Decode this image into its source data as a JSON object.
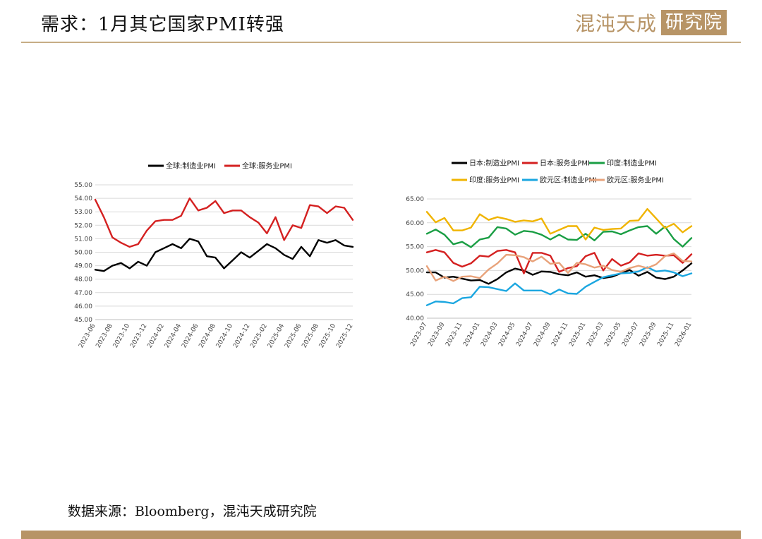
{
  "header": {
    "title": "需求：1月其它国家PMI转强",
    "logo_text": "混沌天成",
    "logo_box": "研究院"
  },
  "footer": {
    "source": "数据来源：Bloomberg，混沌天成研究院"
  },
  "chart_data": [
    {
      "type": "line",
      "title": "",
      "xlabel": "",
      "ylabel": "",
      "ylim": [
        45,
        55
      ],
      "yticks": [
        "55.00",
        "54.00",
        "53.00",
        "52.00",
        "51.00",
        "50.00",
        "49.00",
        "48.00",
        "47.00",
        "46.00",
        "45.00"
      ],
      "x": [
        "2023-06",
        "2023-07",
        "2023-08",
        "2023-09",
        "2023-10",
        "2023-11",
        "2023-12",
        "2024-01",
        "2024-02",
        "2024-03",
        "2024-04",
        "2024-05",
        "2024-06",
        "2024-07",
        "2024-08",
        "2024-09",
        "2024-10",
        "2024-11",
        "2024-12",
        "2025-01",
        "2025-02",
        "2025-03",
        "2025-04",
        "2025-05",
        "2025-06",
        "2025-07",
        "2025-08",
        "2025-09",
        "2025-10",
        "2025-11",
        "2025-12"
      ],
      "xtick_labels": [
        "2023-06",
        "2023-08",
        "2023-10",
        "2023-12",
        "2024-02",
        "2024-04",
        "2024-06",
        "2024-08",
        "2024-10",
        "2024-12",
        "2025-02",
        "2025-04",
        "2025-06",
        "2025-08",
        "2025-10",
        "2025-12"
      ],
      "legend_position": "top",
      "series": [
        {
          "name": "全球:制造业PMI",
          "color": "#000000",
          "values": [
            48.7,
            48.6,
            49.0,
            49.2,
            48.8,
            49.3,
            49.0,
            50.0,
            50.3,
            50.6,
            50.3,
            51.0,
            50.8,
            49.7,
            49.6,
            48.8,
            49.4,
            50.0,
            49.6,
            50.1,
            50.6,
            50.3,
            49.8,
            49.5,
            50.4,
            49.7,
            50.9,
            50.7,
            50.9,
            50.5,
            50.4
          ]
        },
        {
          "name": "全球:服务业PMI",
          "color": "#d42020",
          "values": [
            53.9,
            52.6,
            51.1,
            50.7,
            50.4,
            50.6,
            51.6,
            52.3,
            52.4,
            52.4,
            52.7,
            54.0,
            53.1,
            53.3,
            53.8,
            52.9,
            53.1,
            53.1,
            52.6,
            52.2,
            51.4,
            52.6,
            50.9,
            52.0,
            51.8,
            53.5,
            53.4,
            52.9,
            53.4,
            53.3,
            52.4
          ]
        }
      ]
    },
    {
      "type": "line",
      "title": "",
      "xlabel": "",
      "ylabel": "",
      "ylim": [
        40,
        65
      ],
      "yticks": [
        "65.00",
        "60.00",
        "55.00",
        "50.00",
        "45.00",
        "40.00"
      ],
      "x": [
        "2023-07",
        "2023-08",
        "2023-09",
        "2023-10",
        "2023-11",
        "2023-12",
        "2024-01",
        "2024-02",
        "2024-03",
        "2024-04",
        "2024-05",
        "2024-06",
        "2024-07",
        "2024-08",
        "2024-09",
        "2024-10",
        "2024-11",
        "2024-12",
        "2025-01",
        "2025-02",
        "2025-03",
        "2025-04",
        "2025-05",
        "2025-06",
        "2025-07",
        "2025-08",
        "2025-09",
        "2025-10",
        "2025-11",
        "2025-12",
        "2026-01"
      ],
      "xtick_labels": [
        "2023-07",
        "2023-09",
        "2023-11",
        "2024-01",
        "2024-03",
        "2024-05",
        "2024-07",
        "2024-09",
        "2024-11",
        "2025-01",
        "2025-03",
        "2025-05",
        "2025-07",
        "2025-09",
        "2025-11",
        "2026-01"
      ],
      "legend_position": "top",
      "series": [
        {
          "name": "日本:制造业PMI",
          "color": "#000000",
          "values": [
            49.6,
            49.6,
            48.5,
            48.7,
            48.3,
            47.9,
            48.0,
            47.2,
            48.2,
            49.6,
            50.4,
            50.0,
            49.1,
            49.8,
            49.7,
            49.2,
            49.0,
            49.6,
            48.7,
            49.0,
            48.4,
            48.7,
            49.4,
            50.1,
            48.9,
            49.7,
            48.5,
            48.2,
            48.7,
            50.0,
            51.5
          ]
        },
        {
          "name": "日本:服务业PMI",
          "color": "#d42020",
          "values": [
            53.8,
            54.3,
            53.8,
            51.6,
            50.8,
            51.5,
            53.1,
            52.9,
            54.1,
            54.3,
            53.8,
            49.4,
            53.7,
            53.7,
            53.1,
            49.7,
            50.5,
            50.9,
            53.0,
            53.7,
            50.0,
            52.4,
            51.0,
            51.7,
            53.6,
            53.1,
            53.3,
            53.1,
            53.2,
            51.6,
            53.4
          ]
        },
        {
          "name": "印度:制造业PMI",
          "color": "#1a9e44",
          "values": [
            57.7,
            58.6,
            57.5,
            55.5,
            56.0,
            54.9,
            56.5,
            56.9,
            59.1,
            58.8,
            57.5,
            58.3,
            58.1,
            57.5,
            56.5,
            57.5,
            56.5,
            56.4,
            57.7,
            56.3,
            58.1,
            58.2,
            57.6,
            58.4,
            59.1,
            59.3,
            57.7,
            59.2,
            56.6,
            55.0,
            56.8
          ]
        },
        {
          "name": "印度:服务业PMI",
          "color": "#f0b400",
          "values": [
            62.3,
            60.1,
            61.0,
            58.4,
            58.4,
            59.0,
            61.8,
            60.6,
            61.2,
            60.8,
            60.2,
            60.5,
            60.3,
            60.9,
            57.7,
            58.5,
            59.3,
            59.3,
            56.5,
            59.0,
            58.5,
            58.7,
            58.8,
            60.4,
            60.5,
            62.9,
            60.9,
            58.9,
            59.8,
            58.0,
            59.3
          ]
        },
        {
          "name": "欧元区:制造业PMI",
          "color": "#1aa6e0",
          "values": [
            42.7,
            43.5,
            43.4,
            43.1,
            44.2,
            44.4,
            46.6,
            46.5,
            46.1,
            45.7,
            47.3,
            45.8,
            45.8,
            45.8,
            45.0,
            46.0,
            45.2,
            45.1,
            46.6,
            47.6,
            48.6,
            49.0,
            49.4,
            49.5,
            49.8,
            50.7,
            49.8,
            50.0,
            49.6,
            48.8,
            49.4
          ]
        },
        {
          "name": "欧元区:服务业PMI",
          "color": "#e8a27a",
          "values": [
            50.9,
            47.9,
            48.7,
            47.8,
            48.7,
            48.8,
            48.4,
            50.2,
            51.5,
            53.3,
            53.2,
            52.8,
            51.9,
            52.9,
            51.4,
            51.6,
            49.5,
            51.6,
            51.3,
            50.6,
            51.0,
            50.1,
            49.7,
            50.5,
            51.0,
            50.5,
            51.3,
            53.0,
            53.6,
            52.0,
            51.9
          ]
        }
      ]
    }
  ]
}
